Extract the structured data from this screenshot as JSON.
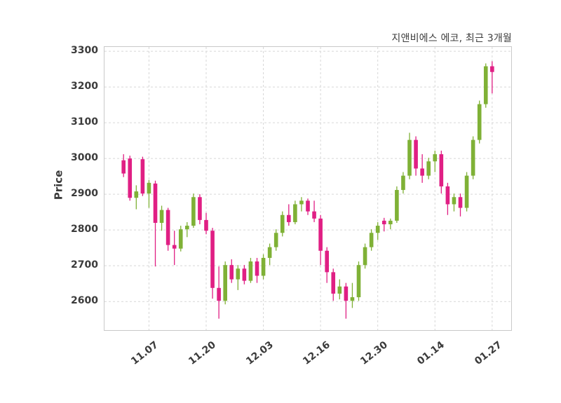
{
  "title": "지앤비에스 에코, 최근 3개월",
  "ylabel": "Price",
  "chart_data": {
    "type": "candlestick",
    "title": "지앤비에스 에코, 최근 3개월",
    "ylabel": "Price",
    "xlabel": "",
    "grid": "dashed-both-axes",
    "legend": "none",
    "ylim": [
      2520,
      3312
    ],
    "y_ticks": [
      2600,
      2700,
      2800,
      2900,
      3000,
      3100,
      3200,
      3300
    ],
    "x_tick_labels": [
      "11.07",
      "11.20",
      "12.03",
      "12.16",
      "12.30",
      "01.14",
      "01.27"
    ],
    "x_tick_indices": [
      4,
      13,
      22,
      31,
      40,
      49,
      58
    ],
    "colors": {
      "up": "#7fb136",
      "down": "#e01f84",
      "grid": "#d7d7d7",
      "frame": "#c9c9c9",
      "tick_text": "#3b3b3b"
    },
    "columns": [
      "date",
      "open",
      "high",
      "low",
      "close"
    ],
    "candles": [
      [
        "11.01",
        2995,
        3012,
        2948,
        2958
      ],
      [
        "11.04",
        3000,
        3008,
        2882,
        2890
      ],
      [
        "11.05",
        2890,
        2925,
        2858,
        2908
      ],
      [
        "11.06",
        2998,
        3005,
        2895,
        2902
      ],
      [
        "11.07",
        2902,
        2940,
        2862,
        2932
      ],
      [
        "11.08",
        2930,
        2938,
        2698,
        2820
      ],
      [
        "11.11",
        2820,
        2868,
        2798,
        2856
      ],
      [
        "11.12",
        2856,
        2862,
        2742,
        2758
      ],
      [
        "11.13",
        2758,
        2798,
        2702,
        2748
      ],
      [
        "11.14",
        2748,
        2812,
        2740,
        2802
      ],
      [
        "11.15",
        2802,
        2822,
        2780,
        2812
      ],
      [
        "11.18",
        2812,
        2902,
        2806,
        2892
      ],
      [
        "11.19",
        2892,
        2900,
        2816,
        2828
      ],
      [
        "11.20",
        2828,
        2848,
        2788,
        2798
      ],
      [
        "11.21",
        2798,
        2806,
        2608,
        2638
      ],
      [
        "11.22",
        2638,
        2698,
        2552,
        2602
      ],
      [
        "11.25",
        2602,
        2712,
        2592,
        2702
      ],
      [
        "11.26",
        2702,
        2718,
        2652,
        2662
      ],
      [
        "11.27",
        2662,
        2702,
        2632,
        2692
      ],
      [
        "11.28",
        2692,
        2702,
        2648,
        2658
      ],
      [
        "11.29",
        2658,
        2722,
        2652,
        2712
      ],
      [
        "12.02",
        2712,
        2722,
        2652,
        2672
      ],
      [
        "12.03",
        2672,
        2732,
        2662,
        2722
      ],
      [
        "12.04",
        2722,
        2762,
        2702,
        2752
      ],
      [
        "12.05",
        2752,
        2802,
        2742,
        2792
      ],
      [
        "12.06",
        2792,
        2852,
        2782,
        2842
      ],
      [
        "12.09",
        2842,
        2872,
        2812,
        2822
      ],
      [
        "12.10",
        2822,
        2882,
        2816,
        2872
      ],
      [
        "12.11",
        2872,
        2892,
        2852,
        2882
      ],
      [
        "12.12",
        2882,
        2888,
        2842,
        2852
      ],
      [
        "12.13",
        2852,
        2882,
        2822,
        2832
      ],
      [
        "12.16",
        2832,
        2842,
        2702,
        2742
      ],
      [
        "12.17",
        2742,
        2752,
        2652,
        2682
      ],
      [
        "12.18",
        2682,
        2692,
        2602,
        2622
      ],
      [
        "12.19",
        2622,
        2662,
        2606,
        2642
      ],
      [
        "12.20",
        2642,
        2652,
        2552,
        2602
      ],
      [
        "12.23",
        2602,
        2652,
        2582,
        2612
      ],
      [
        "12.24",
        2612,
        2712,
        2602,
        2702
      ],
      [
        "12.26",
        2702,
        2762,
        2692,
        2752
      ],
      [
        "12.27",
        2752,
        2802,
        2742,
        2792
      ],
      [
        "12.30",
        2792,
        2822,
        2772,
        2812
      ],
      [
        "01.02",
        2826,
        2834,
        2796,
        2816
      ],
      [
        "01.03",
        2816,
        2832,
        2802,
        2826
      ],
      [
        "01.06",
        2826,
        2922,
        2820,
        2912
      ],
      [
        "01.07",
        2912,
        2962,
        2902,
        2952
      ],
      [
        "01.08",
        2952,
        3072,
        2942,
        3052
      ],
      [
        "01.09",
        3052,
        3062,
        2952,
        2972
      ],
      [
        "01.10",
        2972,
        3012,
        2932,
        2952
      ],
      [
        "01.13",
        2952,
        3002,
        2942,
        2992
      ],
      [
        "01.14",
        2992,
        3022,
        2962,
        3012
      ],
      [
        "01.15",
        3012,
        3022,
        2902,
        2922
      ],
      [
        "01.16",
        2922,
        2932,
        2842,
        2872
      ],
      [
        "01.17",
        2872,
        2902,
        2852,
        2892
      ],
      [
        "01.20",
        2892,
        2902,
        2838,
        2862
      ],
      [
        "01.21",
        2862,
        2962,
        2852,
        2952
      ],
      [
        "01.22",
        2952,
        3062,
        2942,
        3052
      ],
      [
        "01.23",
        3052,
        3162,
        3042,
        3152
      ],
      [
        "01.24",
        3152,
        3266,
        3142,
        3258
      ],
      [
        "01.27",
        3258,
        3272,
        3182,
        3242
      ]
    ]
  }
}
